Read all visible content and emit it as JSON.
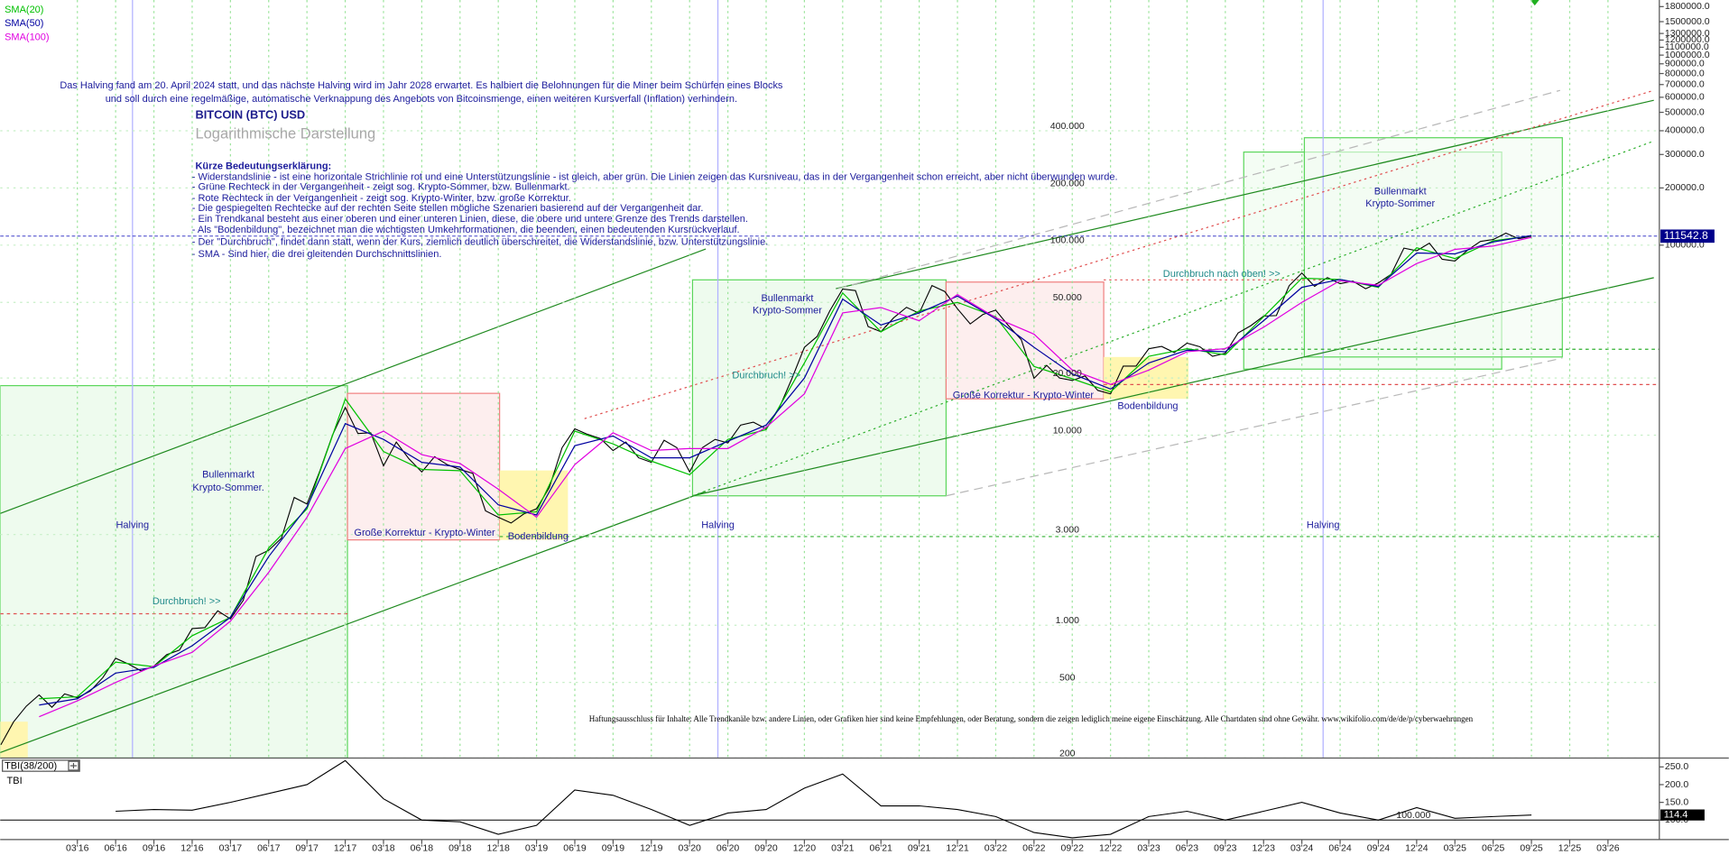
{
  "chart_data": [
    {
      "type": "line",
      "title": "BITCOIN (BTC) USD",
      "subtitle": "Logarithmische Darstellung",
      "log_scale": true,
      "grid": true,
      "legend": "top-left",
      "ylim": [
        200,
        1950000
      ],
      "yticks": [
        {
          "value": 1800000,
          "label": "1800000.0"
        },
        {
          "value": 1500000,
          "label": "1500000.0"
        },
        {
          "value": 1300000,
          "label": "1300000.0"
        },
        {
          "value": 1200000,
          "label": "1200000.0"
        },
        {
          "value": 1100000,
          "label": "1100000.0"
        },
        {
          "value": 1000000,
          "label": "1000000.0"
        },
        {
          "value": 900000,
          "label": "900000.0"
        },
        {
          "value": 800000,
          "label": "800000.0"
        },
        {
          "value": 700000,
          "label": "700000.0"
        },
        {
          "value": 600000,
          "label": "600000.0"
        },
        {
          "value": 500000,
          "label": "500000.0"
        },
        {
          "value": 400000,
          "label": "400000.0"
        },
        {
          "value": 300000,
          "label": "300000.0"
        },
        {
          "value": 200000,
          "label": "200000.0"
        },
        {
          "value": 100000,
          "label": "100000.0"
        }
      ],
      "grid_labels": [
        {
          "value": 400000,
          "label": "400.000"
        },
        {
          "value": 200000,
          "label": "200.000"
        },
        {
          "value": 100000,
          "label": "100.000"
        },
        {
          "value": 50000,
          "label": "50.000"
        },
        {
          "value": 20000,
          "label": "20.000"
        },
        {
          "value": 10000,
          "label": "10.000"
        },
        {
          "value": 3000,
          "label": "3.000"
        },
        {
          "value": 1000,
          "label": "1.000"
        },
        500,
        200
      ],
      "xticks": [
        "03'16",
        "06'16",
        "09'16",
        "12'16",
        "03'17",
        "06'17",
        "09'17",
        "12'17",
        "03'18",
        "06'18",
        "09'18",
        "12'18",
        "03'19",
        "06'19",
        "09'19",
        "12'19",
        "03'20",
        "06'20",
        "09'20",
        "12'20",
        "03'21",
        "06'21",
        "09'21",
        "12'21",
        "03'22",
        "06'22",
        "09'22",
        "12'22",
        "03'23",
        "06'23",
        "09'23",
        "12'23",
        "03'24",
        "06'24",
        "09'24",
        "12'24",
        "03'25",
        "06'25",
        "09'25",
        "12'25",
        "03'26"
      ],
      "series": [
        {
          "color": "#000000",
          "x": [
            "09'15",
            "10'15",
            "11'15",
            "12'15",
            "01'16",
            "02'16",
            "03'16",
            "04'16",
            "05'16",
            "06'16",
            "07'16",
            "08'16",
            "09'16",
            "10'16",
            "11'16",
            "12'16",
            "01'17",
            "02'17",
            "03'17",
            "04'17",
            "05'17",
            "06'17",
            "07'17",
            "08'17",
            "09'17",
            "10'17",
            "11'17",
            "12'17",
            "01'18",
            "02'18",
            "03'18",
            "04'18",
            "05'18",
            "06'18",
            "07'18",
            "08'18",
            "09'18",
            "10'18",
            "11'18",
            "12'18",
            "01'19",
            "02'19",
            "03'19",
            "04'19",
            "05'19",
            "06'19",
            "07'19",
            "08'19",
            "09'19",
            "10'19",
            "11'19",
            "12'19",
            "01'20",
            "02'20",
            "03'20",
            "04'20",
            "05'20",
            "06'20",
            "07'20",
            "08'20",
            "09'20",
            "10'20",
            "11'20",
            "12'20",
            "01'21",
            "02'21",
            "03'21",
            "04'21",
            "05'21",
            "06'21",
            "07'21",
            "08'21",
            "09'21",
            "10'21",
            "11'21",
            "12'21",
            "01'22",
            "02'22",
            "03'22",
            "04'22",
            "05'22",
            "06'22",
            "07'22",
            "08'22",
            "09'22",
            "10'22",
            "11'22",
            "12'22",
            "01'23",
            "02'23",
            "03'23",
            "04'23",
            "05'23",
            "06'23",
            "07'23",
            "08'23",
            "09'23",
            "10'23",
            "11'23",
            "12'23",
            "01'24",
            "02'24",
            "03'24",
            "04'24",
            "05'24",
            "06'24",
            "07'24",
            "08'24",
            "09'24",
            "10'24",
            "11'24",
            "12'24",
            "01'25",
            "02'25",
            "03'25",
            "04'25",
            "05'25",
            "06'25",
            "07'25",
            "08'25",
            "09'25"
          ],
          "values": [
            235,
            310,
            375,
            430,
            370,
            435,
            415,
            450,
            530,
            670,
            625,
            575,
            610,
            700,
            740,
            960,
            970,
            1190,
            1080,
            1350,
            2300,
            2480,
            2870,
            4700,
            4340,
            6450,
            10000,
            14000,
            10200,
            10300,
            6900,
            9200,
            7500,
            6400,
            7700,
            7000,
            6600,
            6300,
            4000,
            3700,
            3450,
            3850,
            4100,
            5300,
            8600,
            10800,
            10100,
            9600,
            8300,
            9200,
            7600,
            7200,
            9400,
            8600,
            6400,
            8600,
            9500,
            9100,
            11300,
            11700,
            10800,
            13800,
            19700,
            29000,
            33100,
            45200,
            58800,
            57700,
            37300,
            35000,
            41500,
            47100,
            43800,
            61300,
            57000,
            46300,
            38500,
            43200,
            45500,
            37700,
            31800,
            19900,
            23300,
            20000,
            19400,
            20500,
            17200,
            16500,
            23100,
            23100,
            28500,
            29300,
            27200,
            30500,
            29200,
            26000,
            27000,
            34500,
            37700,
            42300,
            42600,
            61200,
            71300,
            60700,
            67500,
            62700,
            64600,
            59000,
            63300,
            70300,
            96400,
            93400,
            102400,
            84300,
            82500,
            94200,
            104600,
            107100,
            115700,
            108000,
            111542.8
          ]
        },
        {
          "name": "SMA(20)",
          "color": "#00c000",
          "x": [
            "12'15",
            "03'16",
            "06'16",
            "09'16",
            "12'16",
            "03'17",
            "06'17",
            "09'17",
            "12'17",
            "03'18",
            "06'18",
            "09'18",
            "12'18",
            "03'19",
            "06'19",
            "09'19",
            "12'19",
            "03'20",
            "06'20",
            "09'20",
            "12'20",
            "03'21",
            "06'21",
            "09'21",
            "12'21",
            "03'22",
            "06'22",
            "09'22",
            "12'22",
            "03'23",
            "06'23",
            "09'23",
            "12'23",
            "03'24",
            "06'24",
            "09'24",
            "12'24",
            "03'25",
            "06'25",
            "09'25"
          ],
          "values": [
            410,
            420,
            640,
            605,
            880,
            1100,
            2550,
            4100,
            15500,
            8200,
            6600,
            6500,
            3800,
            3950,
            10500,
            9000,
            7300,
            6200,
            9500,
            10700,
            24000,
            56000,
            35000,
            45000,
            50000,
            42000,
            23000,
            19800,
            16900,
            26000,
            28500,
            26500,
            42000,
            67000,
            66000,
            60000,
            97000,
            85000,
            105500,
            112000
          ]
        },
        {
          "name": "SMA(50)",
          "color": "#0000a0",
          "x": [
            "12'15",
            "03'16",
            "06'16",
            "09'16",
            "12'16",
            "03'17",
            "06'17",
            "09'17",
            "12'17",
            "03'18",
            "06'18",
            "09'18",
            "12'18",
            "03'19",
            "06'19",
            "09'19",
            "12'19",
            "03'20",
            "06'20",
            "09'20",
            "12'20",
            "03'21",
            "06'21",
            "09'21",
            "12'21",
            "03'22",
            "06'22",
            "09'22",
            "12'22",
            "03'23",
            "06'23",
            "09'23",
            "12'23",
            "03'24",
            "06'24",
            "09'24",
            "12'24",
            "03'25",
            "06'25",
            "09'25"
          ],
          "values": [
            380,
            410,
            560,
            600,
            780,
            1100,
            2300,
            4200,
            11500,
            9500,
            7200,
            6800,
            4300,
            3800,
            8800,
            9900,
            7600,
            7600,
            9300,
            11300,
            20000,
            52000,
            38000,
            44000,
            54000,
            41000,
            29000,
            21000,
            17500,
            24000,
            28000,
            27500,
            40000,
            60000,
            66000,
            60500,
            91000,
            90000,
            104000,
            112500
          ]
        },
        {
          "name": "SMA(100)",
          "color": "#e000e0",
          "x": [
            "12'15",
            "03'16",
            "06'16",
            "09'16",
            "12'16",
            "03'17",
            "06'17",
            "09'17",
            "12'17",
            "03'18",
            "06'18",
            "09'18",
            "12'18",
            "03'19",
            "06'19",
            "09'19",
            "12'19",
            "03'20",
            "06'20",
            "09'20",
            "12'20",
            "03'21",
            "06'21",
            "09'21",
            "12'21",
            "03'22",
            "06'22",
            "09'22",
            "12'22",
            "03'23",
            "06'23",
            "09'23",
            "12'23",
            "03'24",
            "06'24",
            "09'24",
            "12'24",
            "03'25",
            "06'25",
            "09'25"
          ],
          "values": [
            330,
            400,
            500,
            610,
            720,
            1050,
            1900,
            3700,
            8500,
            10500,
            7900,
            7100,
            5200,
            3700,
            7000,
            10300,
            8300,
            8500,
            8500,
            11000,
            16500,
            44000,
            47000,
            40000,
            55000,
            41500,
            34000,
            22000,
            18500,
            22000,
            27500,
            28500,
            37000,
            50000,
            65000,
            61500,
            80000,
            95000,
            99000,
            110000
          ]
        }
      ],
      "annotations": [
        "Das Halving fand am 20. April 2024 statt, und das nächste Halving wird im Jahr 2028 erwartet. Es halbiert die Belohnungen für die Miner beim Schürfen eines Blocks",
        "und soll durch eine regelmäßige, automatische Verknappung des Angebots von Bitcoinsmenge, einen weiteren Kursverfall (Inflation) verhindern.",
        "Kürze Bedeutungserklärung:",
        "- Widerstandslinie - ist eine horizontale Strichlinie rot und eine Unterstützungslinie - ist gleich, aber grün. Die Linien zeigen das Kursniveau, das in der Vergangenheit schon erreicht, aber nicht überwunden wurde.",
        "- Grüne Rechteck in der Vergangenheit - zeigt sog. Krypto-Sommer, bzw. Bullenmarkt.",
        "- Rote Rechteck in der Vergangenheit - zeigt sog. Krypto-Winter, bzw. große Korrektur.",
        "- Die gespiegelten Rechtecke auf der rechten Seite stellen mögliche Szenarien basierend auf der Vergangenheit dar.",
        "- Ein Trendkanal besteht aus einer oberen und einer unteren Linien, diese, die obere und untere Grenze des Trends darstellen.",
        "- Als \"Bodenbildung\", bezeichnet man die wichtigsten Umkehrformationen, die beenden, einen bedeutenden Kursrückverlauf.",
        "- Der \"Durchbruch\", findet dann statt, wenn der Kurs, ziemlich deutlich überschreitet, die Widerstandslinie, bzw. Unterstützungslinie.",
        "- SMA - Sind hier, die drei gleitenden Durchschnittslinien.",
        "Bullenmarkt",
        "Krypto-Sommer.",
        "Halving",
        "Durchbruch! >>",
        "Große Korrektur - Krypto-Winter",
        "Bodenbildung",
        "Halving",
        "Durchbruch! >>",
        "Bullenmarkt",
        "Krypto-Sommer",
        "Große Korrektur - Krypto-Winter",
        "Bodenbildung",
        "Durchbruch nach oben! >>",
        "Halving",
        "Bullenmarkt",
        "Krypto-Sommer",
        "Haftungsausschluss für Inhalte: Alle Trendkanäle bzw. andere Linien, oder Grafiken hier sind keine Empfehlungen, oder Beratung, sondern die zeigen lediglich meine eigene Einschätzung. Alle Chartdaten sind ohne Gewähr.  www.wikifolio.com/de/de/p/cyberwaehrungen"
      ]
    },
    {
      "type": "line",
      "title": "TBI(38/200)",
      "ylim": [
        45,
        275
      ],
      "yticks": [
        {
          "value": 250,
          "label": "250.0"
        },
        {
          "value": 200,
          "label": "200.0"
        },
        {
          "value": 150,
          "label": "150.0"
        },
        {
          "value": 100,
          "label": "100.0"
        }
      ],
      "level": {
        "value": 100,
        "label": "100.000"
      },
      "series": [
        {
          "name": "TBI",
          "color": "#000000",
          "x": [
            "06'16",
            "09'16",
            "12'16",
            "03'17",
            "06'17",
            "09'17",
            "12'17",
            "03'18",
            "06'18",
            "09'18",
            "12'18",
            "03'19",
            "06'19",
            "09'19",
            "12'19",
            "03'20",
            "06'20",
            "09'20",
            "12'20",
            "03'21",
            "06'21",
            "09'21",
            "12'21",
            "03'22",
            "06'22",
            "09'22",
            "12'22",
            "03'23",
            "06'23",
            "09'23",
            "12'23",
            "03'24",
            "06'24",
            "09'24",
            "12'24",
            "03'25",
            "06'25",
            "09'25"
          ],
          "values": [
            125,
            130,
            128,
            150,
            175,
            200,
            268,
            160,
            100,
            95,
            60,
            85,
            185,
            170,
            130,
            85,
            120,
            130,
            190,
            230,
            140,
            140,
            130,
            110,
            65,
            50,
            60,
            110,
            125,
            100,
            125,
            150,
            120,
            100,
            135,
            105,
            110,
            114.4
          ]
        }
      ]
    }
  ]
}
